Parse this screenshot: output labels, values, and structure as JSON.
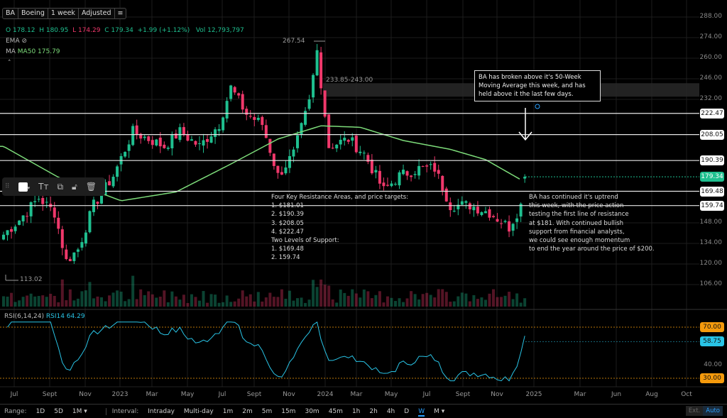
{
  "header": {
    "symbol": "BA",
    "name": "Boeing",
    "period": "1 week",
    "adjust": "Adjusted"
  },
  "ohlc": {
    "o_label": "O",
    "o": "178.12",
    "h_label": "H",
    "h": "180.95",
    "l_label": "L",
    "l": "174.29",
    "c_label": "C",
    "c": "179.34",
    "change": "+1.99 (+1.12%)",
    "vol_label": "Vol",
    "vol": "12,793,797"
  },
  "indicators": {
    "ema": "EMA",
    "ma": "MA",
    "ma50": "MA50 175.79",
    "rsi": "RSI(6,14,24)",
    "rsi14": "RSI14 64.29"
  },
  "colors": {
    "up": "#1fbf8f",
    "down": "#f0386b",
    "ma": "#7ddc7a",
    "rsi": "#29c4e6",
    "rsi_band": "#f59a0c"
  },
  "price_axis": [
    "288.00",
    "274.00",
    "260.00",
    "246.00",
    "232.00",
    "148.00",
    "134.00",
    "120.00",
    "106.00"
  ],
  "price_axis_values": [
    288,
    274,
    260,
    246,
    232,
    148,
    134,
    120,
    106
  ],
  "levels": [
    {
      "value": 222.47,
      "label": "222.47"
    },
    {
      "value": 208.05,
      "label": "208.05"
    },
    {
      "value": 190.39,
      "label": "190.39"
    },
    {
      "value": 169.48,
      "label": "169.48"
    },
    {
      "value": 159.74,
      "label": "159.74"
    }
  ],
  "last_price": {
    "value": 179.34,
    "label": "179.34"
  },
  "zone": {
    "low": 233.85,
    "high": 243.0,
    "label": "233.85-243.00"
  },
  "high_marker": "267.54",
  "low_marker": "113.02",
  "rsi_axis": {
    "upper": "70.00",
    "current": "58.75",
    "mid": "40.00",
    "lower": "30.00"
  },
  "annotations": {
    "box": "BA has broken above it's 50-Week Moving Average this week, and has held above it the last few days.",
    "left": [
      "Four Key Resistance Areas, and price targets:",
      "1. $181.01",
      "2. $190.39",
      "3. $208.05",
      "4. $222.47",
      "Two Levels of Support:",
      "1. $169.48",
      "2. 159.74"
    ],
    "right": [
      "BA has continued it's uptrend",
      "this week, with the price action",
      "testing the first line of resistance",
      "at $181. With continued bullish",
      "support from financial analysts,",
      "we could see enough momentum",
      "to end the year around the price of $200."
    ]
  },
  "x_axis": [
    "Jul",
    "Sept",
    "Nov",
    "2023",
    "Mar",
    "May",
    "Jul",
    "Sept",
    "Nov",
    "2024",
    "Mar",
    "May",
    "Jul",
    "Sept",
    "Nov",
    "2025",
    "Mar",
    "Jun",
    "Aug",
    "Oct"
  ],
  "price_path": [
    [
      0,
      140
    ],
    [
      4,
      150
    ],
    [
      9,
      165
    ],
    [
      13,
      155
    ],
    [
      16,
      122
    ],
    [
      19,
      130
    ],
    [
      23,
      160
    ],
    [
      28,
      180
    ],
    [
      33,
      210
    ],
    [
      37,
      205
    ],
    [
      41,
      200
    ],
    [
      45,
      210
    ],
    [
      50,
      200
    ],
    [
      55,
      215
    ],
    [
      58,
      240
    ],
    [
      62,
      222
    ],
    [
      66,
      215
    ],
    [
      70,
      180
    ],
    [
      74,
      195
    ],
    [
      78,
      230
    ],
    [
      80,
      265
    ],
    [
      83,
      200
    ],
    [
      88,
      205
    ],
    [
      92,
      195
    ],
    [
      97,
      170
    ],
    [
      101,
      180
    ],
    [
      106,
      185
    ],
    [
      110,
      185
    ],
    [
      114,
      160
    ],
    [
      119,
      160
    ],
    [
      124,
      155
    ],
    [
      129,
      145
    ],
    [
      132,
      160
    ],
    [
      133,
      179.34
    ]
  ],
  "ma_path": [
    [
      0,
      200
    ],
    [
      14,
      179
    ],
    [
      30,
      163
    ],
    [
      44,
      169
    ],
    [
      58,
      188
    ],
    [
      70,
      205
    ],
    [
      81,
      214
    ],
    [
      91,
      213
    ],
    [
      102,
      204
    ],
    [
      114,
      198
    ],
    [
      123,
      191
    ],
    [
      133,
      175.8
    ]
  ],
  "bottom": {
    "range_label": "Range:",
    "ranges": [
      "1D",
      "5D",
      "1M ▾"
    ],
    "interval_label": "Interval:",
    "intervals": [
      "Intraday",
      "Multi-day",
      "1m",
      "2m",
      "5m",
      "15m",
      "30m",
      "45m",
      "1h",
      "2h",
      "4h",
      "D",
      "W",
      "M ▾"
    ],
    "ext": "Ext.",
    "auto": "Auto"
  }
}
